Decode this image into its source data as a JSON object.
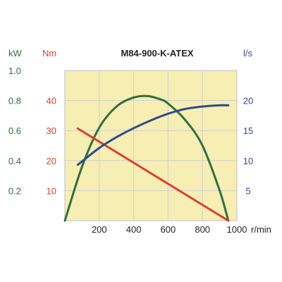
{
  "chart_data": {
    "type": "line",
    "title": "M84-900-K-ATEX",
    "grid": true,
    "colors": {
      "background": "#f7eeb4",
      "grid": "#cfcfcf",
      "power": "#2e7040",
      "torque": "#d8412f",
      "flow": "#2f4b8e",
      "axis_text": "#222222"
    },
    "x_axis": {
      "label": "r/min",
      "range": [
        0,
        1000
      ],
      "ticks": [
        200,
        400,
        600,
        800,
        1000
      ],
      "tick_labels": [
        "200",
        "400",
        "600",
        "800",
        "1000"
      ]
    },
    "y_axes": [
      {
        "id": "kw",
        "unit_label": "kW",
        "range": [
          0,
          1.0
        ],
        "ticks": [
          0.2,
          0.4,
          0.6,
          0.8,
          1.0
        ],
        "tick_labels": [
          "0.2",
          "0.4",
          "0.6",
          "0.8",
          "1.0"
        ],
        "color": "#2e7040"
      },
      {
        "id": "nm",
        "unit_label": "Nm",
        "range": [
          0,
          50
        ],
        "ticks": [
          10,
          20,
          30,
          40
        ],
        "tick_labels": [
          "10",
          "20",
          "30",
          "40"
        ],
        "color": "#d8412f"
      },
      {
        "id": "ls",
        "unit_label": "l/s",
        "range": [
          0,
          25
        ],
        "ticks": [
          5,
          10,
          15,
          20
        ],
        "tick_labels": [
          "5",
          "10",
          "15",
          "20"
        ],
        "color": "#2f4b8e"
      }
    ],
    "series": [
      {
        "id": "power",
        "axis": "kw",
        "color": "#2e7040",
        "x": [
          0,
          100,
          200,
          300,
          400,
          480,
          550,
          600,
          700,
          800,
          900,
          950
        ],
        "y": [
          0.0,
          0.36,
          0.62,
          0.76,
          0.82,
          0.83,
          0.81,
          0.78,
          0.67,
          0.5,
          0.2,
          0.0
        ]
      },
      {
        "id": "torque",
        "axis": "nm",
        "color": "#d8412f",
        "x": [
          75,
          950
        ],
        "y": [
          30.7,
          0
        ]
      },
      {
        "id": "flow",
        "axis": "ls",
        "color": "#2f4b8e",
        "x": [
          75,
          200,
          300,
          400,
          500,
          600,
          700,
          800,
          900,
          950
        ],
        "y": [
          9.3,
          12.1,
          13.9,
          15.4,
          16.7,
          17.8,
          18.6,
          19.0,
          19.2,
          19.2
        ]
      }
    ]
  }
}
